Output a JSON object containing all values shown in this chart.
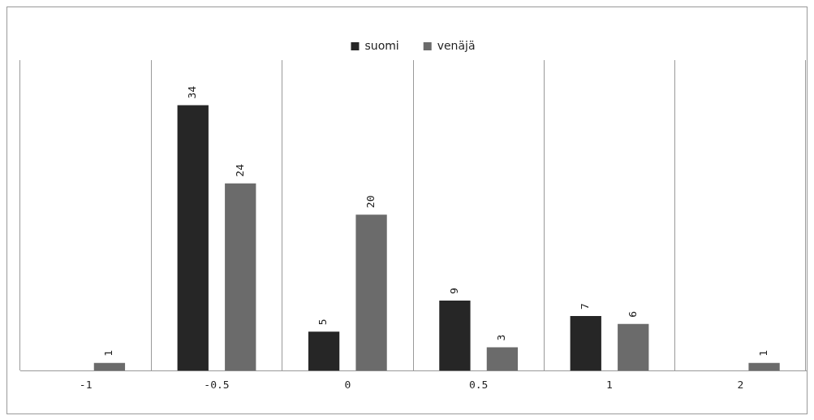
{
  "chart_data": {
    "type": "bar",
    "categories": [
      "-1",
      "-0.5",
      "0",
      "0.5",
      "1",
      "2"
    ],
    "series": [
      {
        "name": "suomi",
        "color": "#262626",
        "values": [
          null,
          34,
          5,
          9,
          7,
          null
        ]
      },
      {
        "name": "venäjä",
        "color": "#6b6b6b",
        "values": [
          1,
          24,
          20,
          3,
          6,
          1
        ]
      }
    ],
    "data_labels": true,
    "grid": "x",
    "legend": "top"
  }
}
